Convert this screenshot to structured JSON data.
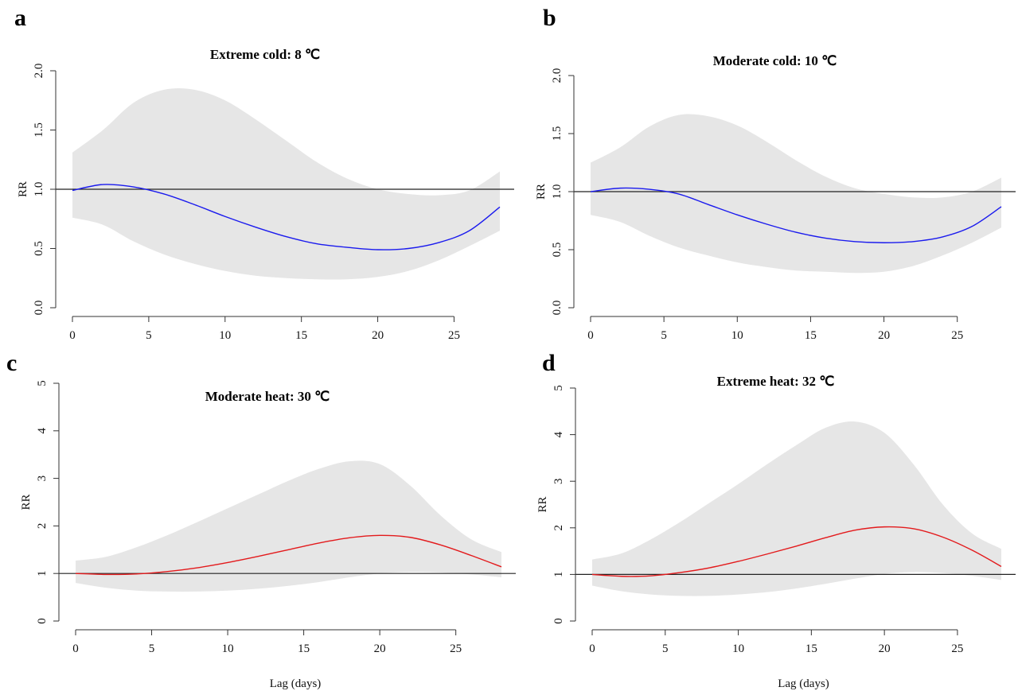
{
  "chart_data": [
    {
      "panel": "a",
      "type": "line",
      "title": "Extreme cold: 8 ℃",
      "xlabel": "",
      "ylabel": "RR",
      "xlim": [
        0,
        28
      ],
      "ylim": [
        0,
        2
      ],
      "xticks": [
        0,
        5,
        10,
        15,
        20,
        25
      ],
      "xtick_labels": [
        "0",
        "5",
        "10",
        "15",
        "20",
        "25"
      ],
      "yticks": [
        0,
        0.5,
        1,
        1.5,
        2
      ],
      "ytick_labels": [
        "0.0",
        "0.5",
        "1.0",
        "1.5",
        "2.0"
      ],
      "reference_line": 1,
      "line_color": "#1a1aee",
      "band_color": "#e6e6e6",
      "x": [
        0,
        2,
        4,
        6,
        8,
        10,
        12,
        14,
        16,
        18,
        20,
        22,
        24,
        26,
        28
      ],
      "estimate": [
        0.99,
        1.04,
        1.02,
        0.96,
        0.87,
        0.77,
        0.68,
        0.6,
        0.54,
        0.51,
        0.49,
        0.5,
        0.55,
        0.65,
        0.85
      ],
      "lower": [
        0.76,
        0.7,
        0.56,
        0.45,
        0.37,
        0.31,
        0.27,
        0.25,
        0.24,
        0.24,
        0.26,
        0.31,
        0.4,
        0.52,
        0.65
      ],
      "upper": [
        1.31,
        1.5,
        1.73,
        1.84,
        1.84,
        1.75,
        1.59,
        1.41,
        1.23,
        1.09,
        1.0,
        0.96,
        0.95,
        0.99,
        1.15
      ]
    },
    {
      "panel": "b",
      "type": "line",
      "title": "Moderate cold: 10 ℃",
      "xlabel": "",
      "ylabel": "RR",
      "xlim": [
        0,
        28
      ],
      "ylim": [
        0,
        2
      ],
      "xticks": [
        0,
        5,
        10,
        15,
        20,
        25
      ],
      "xtick_labels": [
        "0",
        "5",
        "10",
        "15",
        "20",
        "25"
      ],
      "yticks": [
        0,
        0.5,
        1,
        1.5,
        2
      ],
      "ytick_labels": [
        "0.0",
        "0.5",
        "1.0",
        "1.5",
        "2.0"
      ],
      "reference_line": 1,
      "line_color": "#1a1aee",
      "band_color": "#e6e6e6",
      "x": [
        0,
        2,
        4,
        6,
        8,
        10,
        12,
        14,
        16,
        18,
        20,
        22,
        24,
        26,
        28
      ],
      "estimate": [
        1.0,
        1.03,
        1.02,
        0.98,
        0.89,
        0.8,
        0.72,
        0.65,
        0.6,
        0.57,
        0.56,
        0.57,
        0.61,
        0.7,
        0.87
      ],
      "lower": [
        0.8,
        0.74,
        0.62,
        0.52,
        0.45,
        0.39,
        0.35,
        0.32,
        0.31,
        0.3,
        0.31,
        0.36,
        0.45,
        0.56,
        0.69
      ],
      "upper": [
        1.25,
        1.38,
        1.56,
        1.66,
        1.65,
        1.57,
        1.43,
        1.27,
        1.13,
        1.03,
        0.98,
        0.95,
        0.95,
        1.0,
        1.12
      ]
    },
    {
      "panel": "c",
      "type": "line",
      "title": "Moderate heat: 30 ℃",
      "xlabel": "Lag (days)",
      "ylabel": "RR",
      "xlim": [
        0,
        28
      ],
      "ylim": [
        0,
        5
      ],
      "xticks": [
        0,
        5,
        10,
        15,
        20,
        25
      ],
      "xtick_labels": [
        "0",
        "5",
        "10",
        "15",
        "20",
        "25"
      ],
      "yticks": [
        0,
        1,
        2,
        3,
        4,
        5
      ],
      "ytick_labels": [
        "0",
        "1",
        "2",
        "3",
        "4",
        "5"
      ],
      "reference_line": 1,
      "line_color": "#e31a1c",
      "band_color": "#e6e6e6",
      "x": [
        0,
        2,
        4,
        6,
        8,
        10,
        12,
        14,
        16,
        18,
        20,
        22,
        24,
        26,
        28
      ],
      "estimate": [
        1.0,
        0.98,
        0.99,
        1.04,
        1.12,
        1.23,
        1.36,
        1.5,
        1.64,
        1.75,
        1.8,
        1.76,
        1.6,
        1.38,
        1.14
      ],
      "lower": [
        0.8,
        0.7,
        0.64,
        0.62,
        0.62,
        0.64,
        0.68,
        0.74,
        0.82,
        0.92,
        1.0,
        1.03,
        1.02,
        0.98,
        0.92
      ],
      "upper": [
        1.27,
        1.35,
        1.55,
        1.8,
        2.08,
        2.37,
        2.66,
        2.95,
        3.2,
        3.36,
        3.3,
        2.85,
        2.22,
        1.72,
        1.45
      ]
    },
    {
      "panel": "d",
      "type": "line",
      "title": "Extreme heat: 32 ℃",
      "xlabel": "Lag (days)",
      "ylabel": "RR",
      "xlim": [
        0,
        28
      ],
      "ylim": [
        0,
        5
      ],
      "xticks": [
        0,
        5,
        10,
        15,
        20,
        25
      ],
      "xtick_labels": [
        "0",
        "5",
        "10",
        "15",
        "20",
        "25"
      ],
      "yticks": [
        0,
        1,
        2,
        3,
        4,
        5
      ],
      "ytick_labels": [
        "0",
        "1",
        "2",
        "3",
        "4",
        "5"
      ],
      "reference_line": 1,
      "line_color": "#e31a1c",
      "band_color": "#e6e6e6",
      "x": [
        0,
        2,
        4,
        6,
        8,
        10,
        12,
        14,
        16,
        18,
        20,
        22,
        24,
        26,
        28
      ],
      "estimate": [
        1.0,
        0.96,
        0.97,
        1.04,
        1.14,
        1.28,
        1.44,
        1.61,
        1.79,
        1.95,
        2.02,
        1.98,
        1.8,
        1.52,
        1.17
      ],
      "lower": [
        0.76,
        0.64,
        0.57,
        0.54,
        0.54,
        0.57,
        0.62,
        0.7,
        0.8,
        0.91,
        1.01,
        1.05,
        1.03,
        0.97,
        0.88
      ],
      "upper": [
        1.32,
        1.45,
        1.75,
        2.12,
        2.53,
        2.94,
        3.37,
        3.78,
        4.15,
        4.28,
        4.04,
        3.36,
        2.5,
        1.88,
        1.55
      ]
    }
  ]
}
